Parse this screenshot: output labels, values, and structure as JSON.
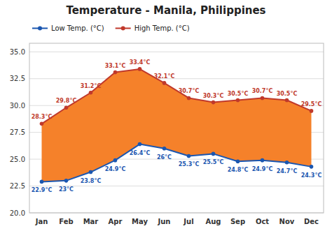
{
  "chart_data": {
    "type": "band",
    "title": "Temperature - Manila, Philippines",
    "categories": [
      "Jan",
      "Feb",
      "Mar",
      "Apr",
      "May",
      "Jun",
      "Jul",
      "Aug",
      "Sep",
      "Oct",
      "Nov",
      "Dec"
    ],
    "color": "#f5812a",
    "series": [
      {
        "name": "Low Temp. (°C)",
        "color": "#1a56b0",
        "marker": "circle",
        "values": [
          22.9,
          23.0,
          23.8,
          24.9,
          26.4,
          26.0,
          25.3,
          25.5,
          24.8,
          24.9,
          24.7,
          24.3
        ],
        "value_labels": [
          "22.9°C",
          "23°C",
          "23.8°C",
          "24.9°C",
          "26.4°C",
          "26°C",
          "25.3°C",
          "25.5°C",
          "24.8°C",
          "24.9°C",
          "24.7°C",
          "24.3°C"
        ]
      },
      {
        "name": "High Temp. (°C)",
        "color": "#c0392b",
        "marker": "circle",
        "values": [
          28.3,
          29.8,
          31.2,
          33.1,
          33.4,
          32.1,
          30.7,
          30.3,
          30.5,
          30.7,
          30.5,
          29.5
        ],
        "value_labels": [
          "28.3°C",
          "29.8°C",
          "31.2°C",
          "33.1°C",
          "33.4°C",
          "32.1°C",
          "30.7°C",
          "30.3°C",
          "30.5°C",
          "30.7°C",
          "30.5°C",
          "29.5°C"
        ]
      }
    ],
    "ylim": [
      20.0,
      35.8
    ],
    "yticks": [
      {
        "value": 20.0,
        "label": "20.0"
      },
      22.5,
      {
        "value": 25.0,
        "label": "25.0"
      },
      27.5,
      {
        "value": 30.0,
        "label": "30.0"
      },
      32.5,
      {
        "value": 35.0,
        "label": "35.0"
      }
    ],
    "grid": true,
    "legend": "upper left",
    "data_labels": true
  }
}
